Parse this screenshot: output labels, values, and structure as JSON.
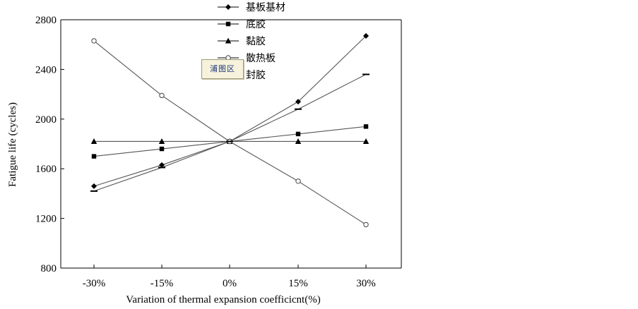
{
  "chart_data": {
    "type": "line",
    "title": "",
    "xlabel": "Variation of thermal expansion coefficicnt(%)",
    "ylabel": "Fatigue life (cycles)",
    "categories": [
      "-30%",
      "-15%",
      "0%",
      "15%",
      "30%"
    ],
    "ylim": [
      800,
      2800
    ],
    "yticks": [
      "800",
      "1200",
      "1600",
      "2000",
      "2400",
      "2800"
    ],
    "grid": false,
    "legend_position": "top-center",
    "series": [
      {
        "name": "基板基材",
        "marker": "diamond-filled",
        "values": [
          1460,
          1630,
          1820,
          2140,
          2670
        ]
      },
      {
        "name": "底胶",
        "marker": "square-filled",
        "values": [
          1700,
          1760,
          1820,
          1880,
          1940
        ]
      },
      {
        "name": "黏胶",
        "marker": "triangle-filled",
        "values": [
          1820,
          1820,
          1820,
          1820,
          1820
        ]
      },
      {
        "name": "散热板",
        "marker": "circle-open",
        "values": [
          2630,
          2190,
          1820,
          1500,
          1150
        ]
      },
      {
        "name": "封胶",
        "marker": "dash",
        "values": [
          1420,
          1610,
          1820,
          2080,
          2360
        ]
      }
    ],
    "colors": {
      "line": "#555555",
      "marker": "#000000"
    }
  },
  "logo_text": "浦图区"
}
